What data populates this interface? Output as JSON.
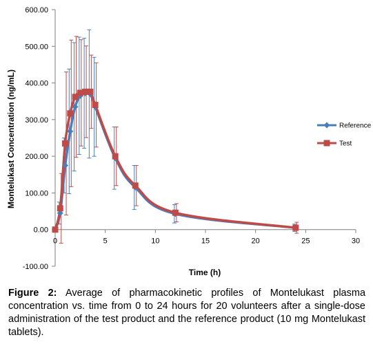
{
  "chart_data": {
    "type": "line",
    "xlabel": "Time (h)",
    "ylabel": "Montelukast Concentration (ng/mL)",
    "xlim": [
      0,
      30
    ],
    "ylim": [
      -100,
      600
    ],
    "x_ticks": [
      "0",
      "5",
      "10",
      "15",
      "20",
      "25",
      "30"
    ],
    "y_ticks": [
      "-100.00",
      "0.00",
      "100.00",
      "200.00",
      "300.00",
      "400.00",
      "500.00",
      "600.00"
    ],
    "grid": false,
    "legend_position": "right",
    "series": [
      {
        "name": "Reference",
        "color": "#4a7ebb",
        "marker": "diamond",
        "x": [
          0,
          0.5,
          1,
          1.5,
          2,
          2.5,
          3,
          3.5,
          4,
          6,
          8,
          12,
          24
        ],
        "y": [
          0,
          45,
          175,
          268,
          335,
          365,
          372,
          370,
          335,
          195,
          115,
          43,
          5
        ],
        "err": [
          0,
          30,
          75,
          170,
          175,
          160,
          150,
          175,
          135,
          85,
          60,
          25,
          10
        ]
      },
      {
        "name": "Test",
        "color": "#be4b48",
        "marker": "square",
        "x": [
          0,
          0.5,
          1,
          1.5,
          2,
          2.5,
          3,
          3.5,
          4,
          6,
          8,
          12,
          24
        ],
        "y": [
          0,
          58,
          235,
          317,
          362,
          373,
          376,
          376,
          340,
          200,
          120,
          46,
          5
        ],
        "err": [
          0,
          95,
          195,
          200,
          165,
          145,
          125,
          100,
          115,
          80,
          55,
          25,
          15
        ]
      }
    ]
  },
  "caption": {
    "label": "Figure 2:",
    "text": " Average of pharmacokinetic profiles of Montelukast plasma concentration vs. time from 0 to 24 hours for 20 volunteers after a single-dose administration of the test product and the reference product (10 mg Montelukast tablets)."
  }
}
